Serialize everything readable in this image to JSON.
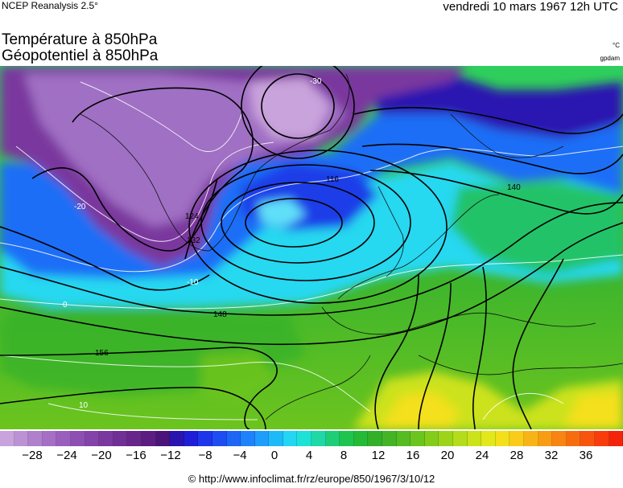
{
  "header": {
    "source": "NCEP Reanalysis 2.5°",
    "datetime": "vendredi 10 mars 1967 12h UTC",
    "title_line1": "Température à 850hPa",
    "title_line2": "Géopotentiel à 850hPa",
    "unit_temperature": "°C",
    "unit_geopotential": "gpdam"
  },
  "map": {
    "region": "europe",
    "contour_labels": [
      {
        "text": "116",
        "kind": "geopotential"
      },
      {
        "text": "124",
        "kind": "geopotential"
      },
      {
        "text": "132",
        "kind": "geopotential"
      },
      {
        "text": "140",
        "kind": "geopotential"
      },
      {
        "text": "148",
        "kind": "geopotential"
      },
      {
        "text": "156",
        "kind": "geopotential"
      },
      {
        "text": "-30",
        "kind": "temperature"
      },
      {
        "text": "-20",
        "kind": "temperature"
      },
      {
        "text": "-10",
        "kind": "temperature"
      },
      {
        "text": "0",
        "kind": "temperature"
      },
      {
        "text": "10",
        "kind": "temperature"
      }
    ]
  },
  "colorbar": {
    "colors": [
      "#c9a3dc",
      "#bd92d4",
      "#b080cc",
      "#a46fc4",
      "#9a5fbc",
      "#8e4fb2",
      "#8443a8",
      "#7a399e",
      "#702f94",
      "#66268a",
      "#5c1d80",
      "#4a1478",
      "#2a14b0",
      "#1e1ed8",
      "#1e36ea",
      "#1e4ef2",
      "#1e66f6",
      "#1e82fa",
      "#1e9efa",
      "#1ebaf8",
      "#24d6f4",
      "#1ee2d6",
      "#1ed8a6",
      "#1ece76",
      "#1ec44e",
      "#24ba36",
      "#32b02a",
      "#44b426",
      "#56bc22",
      "#6cc41e",
      "#84cc1a",
      "#9cd41a",
      "#b4dc1a",
      "#cce21a",
      "#e2e81a",
      "#f4e01a",
      "#f8cc18",
      "#f8b416",
      "#f89c14",
      "#f88412",
      "#f86c10",
      "#f8540e",
      "#f83c0c",
      "#f4240a"
    ],
    "tick_labels": [
      "-28",
      "-24",
      "-20",
      "-16",
      "-12",
      "-8",
      "-4",
      "0",
      "4",
      "8",
      "12",
      "16",
      "20",
      "24",
      "28",
      "32",
      "36"
    ]
  },
  "footer": {
    "copyright": "© http://www.infoclimat.fr/rz/europe/850/1967/3/10/12"
  }
}
